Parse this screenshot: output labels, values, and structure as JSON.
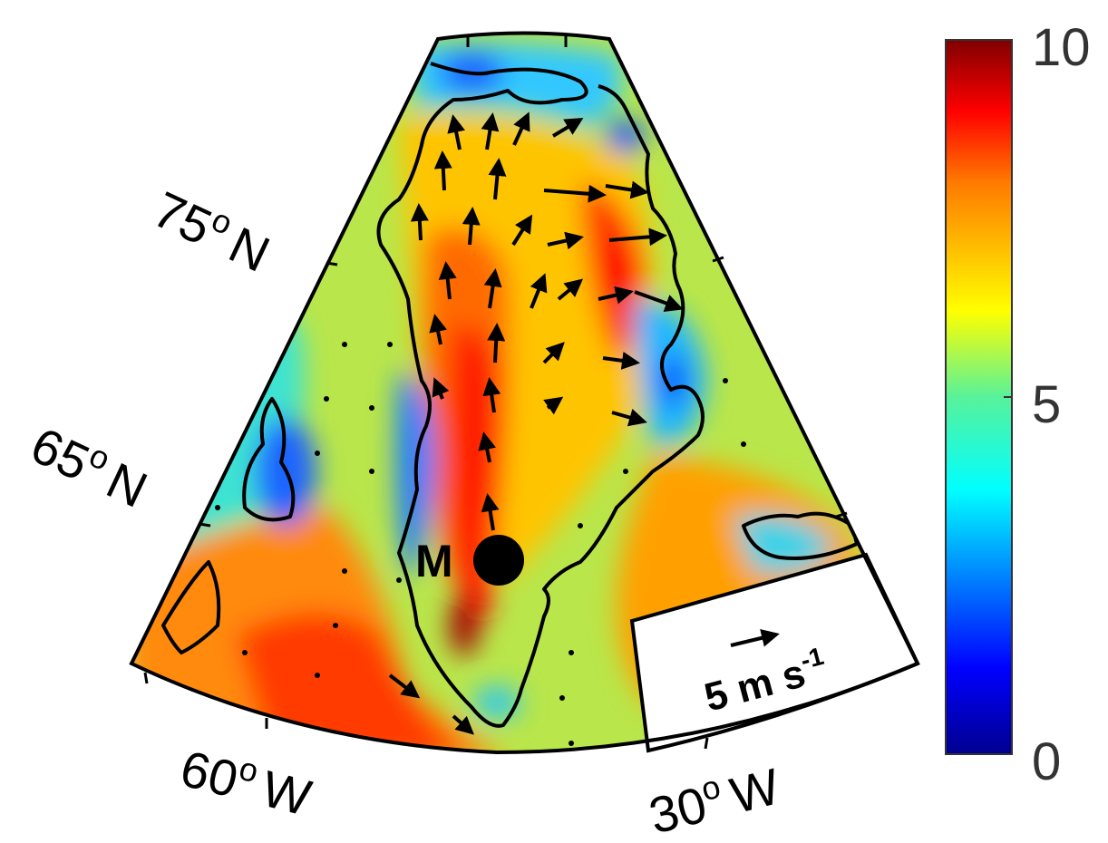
{
  "map": {
    "lat_labels": [
      {
        "deg": "75",
        "sup": "o",
        "hemi": "N"
      },
      {
        "deg": "65",
        "sup": "o",
        "hemi": "N"
      }
    ],
    "lon_labels": [
      {
        "deg": "60",
        "sup": "o",
        "hemi": "W"
      },
      {
        "deg": "30",
        "sup": "o",
        "hemi": "W"
      }
    ],
    "marker": {
      "label": "M",
      "color": "#000000"
    },
    "reference_vector": {
      "value": "5 m s",
      "exp": "-1"
    }
  },
  "colorbar": {
    "ticks": [
      "10",
      "5",
      "0"
    ],
    "min": 0,
    "max": 10,
    "colormap": "jet"
  }
}
